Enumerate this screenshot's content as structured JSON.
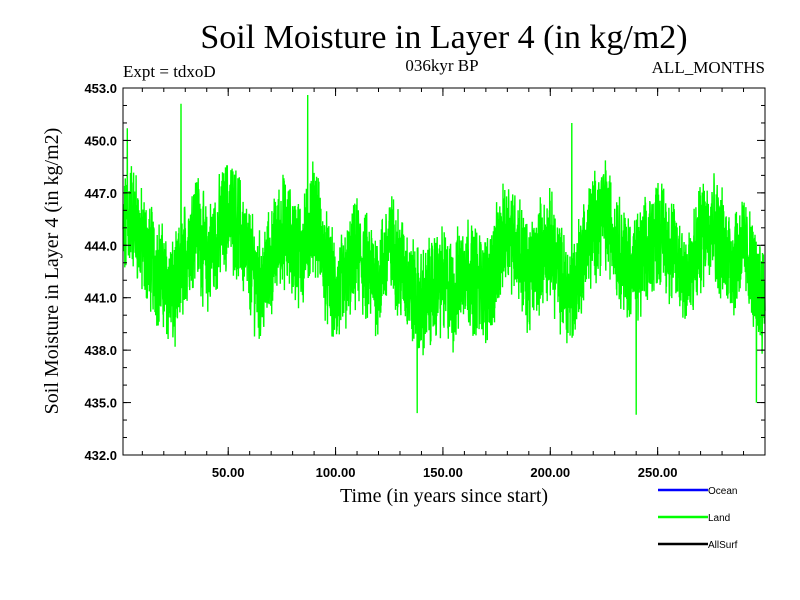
{
  "chart_data": {
    "type": "line",
    "title": "Soil Moisture in Layer 4 (in kg/m2)",
    "subtitle_left": "Expt = tdxoD",
    "subtitle_center": "036kyr BP",
    "subtitle_right": "ALL_MONTHS",
    "xlabel": "Time (in years since start)",
    "ylabel": "Soil Moisture in Layer 4 (in kg/m2)",
    "xlim": [
      1,
      300
    ],
    "ylim": [
      432.0,
      453.0
    ],
    "xticks": [
      50,
      100,
      150,
      200,
      250
    ],
    "xtick_labels": [
      "50.00",
      "100.00",
      "150.00",
      "200.00",
      "250.00"
    ],
    "yticks": [
      432,
      435,
      438,
      441,
      444,
      447,
      450,
      453
    ],
    "ytick_labels": [
      "432.0",
      "435.0",
      "438.0",
      "441.0",
      "444.0",
      "447.0",
      "450.0",
      "453.0"
    ],
    "grid": false,
    "legend_position": "bottom-right",
    "legend": [
      {
        "name": "Ocean",
        "color": "#0000ff"
      },
      {
        "name": "Land",
        "color": "#00ff00"
      },
      {
        "name": "AllSurf",
        "color": "#000000"
      }
    ],
    "series": [
      {
        "name": "Land",
        "color": "#00ff00",
        "x": [
          1,
          5,
          10,
          15,
          20,
          25,
          30,
          35,
          40,
          45,
          50,
          55,
          60,
          65,
          70,
          75,
          80,
          85,
          90,
          95,
          100,
          105,
          110,
          115,
          120,
          125,
          130,
          135,
          140,
          145,
          150,
          155,
          160,
          165,
          170,
          175,
          180,
          185,
          190,
          195,
          200,
          205,
          210,
          215,
          220,
          225,
          230,
          235,
          240,
          245,
          250,
          255,
          260,
          265,
          270,
          275,
          280,
          285,
          290,
          295,
          300
        ],
        "y": [
          444.5,
          446.0,
          444.0,
          443.0,
          442.0,
          441.0,
          443.5,
          445.5,
          443.0,
          444.5,
          446.0,
          445.0,
          443.0,
          441.5,
          443.0,
          445.0,
          444.0,
          443.5,
          446.0,
          443.0,
          441.0,
          442.0,
          443.5,
          442.5,
          442.0,
          444.0,
          443.0,
          441.5,
          440.5,
          441.5,
          442.0,
          441.0,
          443.0,
          442.0,
          441.5,
          443.0,
          445.0,
          444.0,
          442.0,
          443.5,
          444.0,
          442.0,
          441.0,
          443.5,
          445.0,
          446.0,
          444.5,
          443.0,
          442.5,
          443.5,
          445.0,
          444.0,
          443.0,
          442.0,
          444.5,
          445.5,
          444.0,
          443.0,
          444.0,
          442.0,
          441.0
        ]
      }
    ],
    "annotations": [
      {
        "x": 28,
        "y": 452.1
      },
      {
        "x": 87,
        "y": 452.6
      },
      {
        "x": 138,
        "y": 434.4
      },
      {
        "x": 240,
        "y": 434.3
      },
      {
        "x": 210,
        "y": 451.0
      },
      {
        "x": 3,
        "y": 450.7
      },
      {
        "x": 296,
        "y": 435.0
      }
    ]
  }
}
